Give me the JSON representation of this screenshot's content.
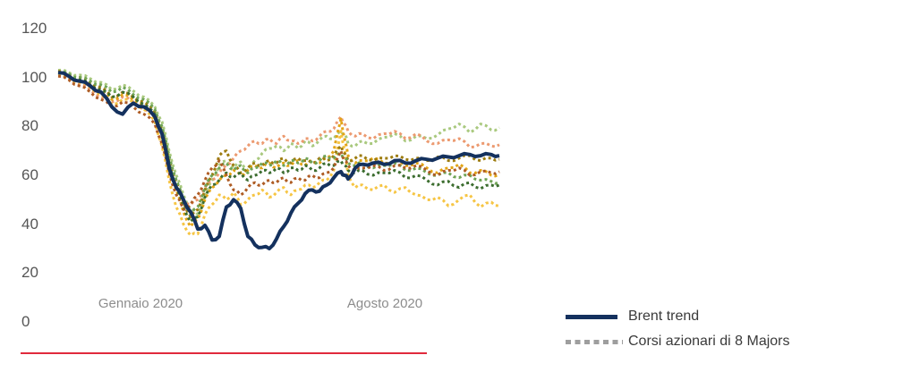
{
  "colors": {
    "background": "#ffffff",
    "divider_red": "#e02a3c",
    "y_axis_label": "#555555",
    "x_axis_label": "#8c8c8c",
    "legend_text": "#3a3a3a"
  },
  "legend": {
    "items": [
      {
        "label": "Brent trend",
        "style": "solid",
        "color": "#14315e"
      },
      {
        "label": "Corsi azionari di 8 Majors",
        "style": "dotted",
        "color": "#9e9e9e"
      }
    ]
  },
  "chart_data": {
    "type": "line",
    "y_ticks": [
      120,
      100,
      80,
      60,
      40,
      20,
      0
    ],
    "y_range": [
      0,
      120
    ],
    "grid": false,
    "legend_position": "bottom-right",
    "x_labels": [
      {
        "text": "Gennaio 2020",
        "x": 157
      },
      {
        "text": "Agosto 2020",
        "x": 430
      }
    ],
    "x": [
      65,
      77,
      89,
      101,
      113,
      125,
      137,
      149,
      161,
      173,
      181,
      189,
      197,
      205,
      213,
      221,
      229,
      237,
      245,
      253,
      261,
      269,
      277,
      285,
      293,
      301,
      309,
      317,
      325,
      333,
      341,
      349,
      357,
      365,
      373,
      381,
      385,
      389,
      397,
      405,
      417,
      429,
      441,
      453,
      465,
      477,
      489,
      501,
      513,
      525,
      537,
      549,
      558
    ],
    "series": [
      {
        "name": "major-1-light-green",
        "color": "#a9c97e",
        "style": "dashed",
        "values": [
          103,
          102,
          101,
          99.5,
          98,
          95,
          97,
          94.5,
          92,
          88,
          82,
          70,
          60,
          52,
          46,
          44,
          52,
          58,
          64,
          66,
          63,
          65.5,
          62,
          66,
          69,
          71,
          72,
          70,
          73,
          71,
          74,
          72,
          74.5,
          76,
          75,
          78,
          77,
          73,
          72,
          74,
          73,
          75.5,
          77,
          74,
          76,
          75,
          76.5,
          79,
          81,
          77.5,
          81,
          78.5,
          79.5
        ]
      },
      {
        "name": "major-2-salmon",
        "color": "#ec9a70",
        "style": "dashed",
        "values": [
          101,
          99.5,
          97,
          95,
          92,
          90,
          92,
          90,
          87,
          84,
          78,
          66,
          57,
          50,
          48,
          50,
          55,
          58,
          61,
          64,
          67,
          70,
          72,
          74,
          73,
          75,
          73,
          76,
          74,
          73,
          75,
          74,
          76,
          78,
          79,
          84,
          81,
          78,
          76,
          77,
          75,
          77,
          78,
          75,
          77,
          74,
          73,
          74.5,
          75,
          71.5,
          73,
          72,
          72.5
        ]
      },
      {
        "name": "major-3-bright-yellow",
        "color": "#f6c544",
        "style": "dashed",
        "values": [
          101,
          100,
          98,
          96,
          93,
          89,
          91,
          90,
          87,
          82,
          72,
          58,
          47,
          40,
          35.5,
          36,
          44,
          48,
          52,
          50,
          53,
          48,
          50,
          52,
          54,
          51,
          53,
          55,
          52,
          54,
          56,
          55,
          57,
          58,
          62,
          78,
          70,
          60,
          55,
          56,
          54,
          56,
          53,
          55,
          52,
          50,
          51,
          47.5,
          50,
          52,
          47,
          49,
          47.5
        ]
      },
      {
        "name": "major-4-gold",
        "color": "#e2a416",
        "style": "dashed",
        "values": [
          102,
          101,
          99,
          97,
          95,
          91,
          93,
          91,
          89,
          85,
          77,
          64,
          54,
          45,
          39,
          42,
          50,
          55,
          58,
          60,
          62,
          60,
          62,
          64,
          63,
          65,
          63,
          65,
          64,
          66,
          64,
          66,
          65,
          67,
          70,
          83,
          75,
          68,
          65,
          66,
          67,
          65,
          66,
          64,
          65,
          63,
          61,
          63,
          64.5,
          61,
          62,
          60,
          60.5
        ]
      },
      {
        "name": "major-5-dark-mustard",
        "color": "#9d7c0f",
        "style": "dashed",
        "values": [
          102.5,
          101,
          100,
          98,
          96,
          92,
          94,
          92,
          90,
          86,
          79,
          66,
          57,
          49,
          43,
          46,
          54,
          60,
          68,
          70,
          64,
          61,
          63,
          65,
          64,
          66,
          65,
          67,
          65,
          67,
          66,
          65,
          67,
          66,
          68,
          72,
          69,
          66,
          67,
          68,
          66,
          67,
          68,
          66.5,
          67,
          66,
          67.5,
          66,
          67,
          68,
          66,
          67,
          66.5
        ]
      },
      {
        "name": "major-6-medium-green",
        "color": "#6fa355",
        "style": "dashed",
        "values": [
          102,
          101.5,
          100,
          98.5,
          97,
          94,
          96,
          93,
          91,
          87,
          80,
          68,
          58,
          50,
          44,
          47,
          55,
          60,
          63,
          65,
          62,
          64,
          61,
          63,
          65,
          64,
          66,
          64,
          66,
          65,
          67,
          65,
          66,
          68,
          67,
          69,
          67,
          65,
          64,
          65,
          63,
          64,
          65,
          62,
          63,
          61,
          60,
          61,
          59,
          60,
          58,
          57.5,
          57
        ]
      },
      {
        "name": "major-7-dark-green",
        "color": "#3c6d2f",
        "style": "dashed",
        "values": [
          102,
          100.5,
          99,
          97,
          95,
          92,
          94,
          92,
          89,
          85,
          78,
          65,
          55,
          47,
          41,
          43,
          51,
          56,
          58,
          61,
          59,
          61,
          58,
          60,
          62,
          61,
          63,
          61,
          63,
          62,
          64,
          62,
          63,
          65,
          64,
          66,
          64,
          62,
          61,
          62,
          60,
          61,
          62,
          59,
          60,
          58,
          56,
          57.5,
          55,
          57,
          54.5,
          56,
          56
        ]
      },
      {
        "name": "major-8-brown",
        "color": "#ae5c24",
        "style": "dashed",
        "values": [
          100.5,
          99,
          96.5,
          94,
          91,
          88,
          90,
          88,
          85,
          81,
          73,
          61,
          52,
          46,
          48,
          52,
          58,
          63,
          66,
          60,
          54,
          52,
          55,
          57,
          56,
          58,
          57,
          59,
          57,
          59,
          58,
          60,
          59,
          61,
          63,
          70,
          66,
          64,
          62,
          63,
          64,
          62,
          64,
          63,
          64,
          62,
          60,
          62,
          63,
          60,
          61.5,
          61,
          61.5
        ]
      },
      {
        "name": "brent-trend",
        "color": "#14315e",
        "style": "solid",
        "values": [
          102,
          100.5,
          98.5,
          96.5,
          94,
          88,
          85,
          89.5,
          88,
          84,
          77,
          63,
          55,
          50,
          45,
          38,
          39.5,
          33.5,
          35,
          47,
          50,
          46.5,
          35,
          31.5,
          30.5,
          30,
          34,
          39,
          44.5,
          48.5,
          52.5,
          54,
          53.5,
          56,
          59,
          61.5,
          60,
          58.5,
          63,
          64.5,
          65,
          64.5,
          66,
          65,
          66,
          66.5,
          67,
          67.5,
          68,
          68.5,
          68,
          68.5,
          68
        ]
      }
    ]
  }
}
